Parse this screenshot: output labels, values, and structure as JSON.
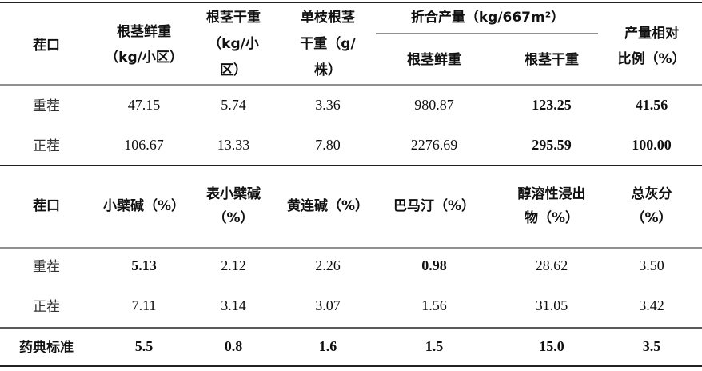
{
  "table1": {
    "header": {
      "row_label": [
        "茬口"
      ],
      "fresh_weight": [
        "根茎鲜重",
        "（kg/小区）"
      ],
      "dry_weight": [
        "根茎干重",
        "（kg/小",
        "区）"
      ],
      "single_dry": [
        "单枝根茎",
        "干重（g/",
        "株）"
      ],
      "group": "折合产量（kg/667m²）",
      "group_fresh": "根茎鲜重",
      "group_dry": "根茎干重",
      "ratio": [
        "产量相对",
        "比例（%）"
      ]
    },
    "rows": [
      [
        "重茬",
        "47.15",
        "5.74",
        "3.36",
        "980.87",
        "123.25",
        "41.56"
      ],
      [
        "正茬",
        "106.67",
        "13.33",
        "7.80",
        "2276.69",
        "295.59",
        "100.00"
      ]
    ]
  },
  "table2": {
    "header": [
      [
        "茬口"
      ],
      [
        "小檗碱（%）"
      ],
      [
        "表小檗碱",
        "（%）"
      ],
      [
        "黄连碱（%）"
      ],
      [
        "巴马汀（%）"
      ],
      [
        "醇溶性浸出",
        "物（%）"
      ],
      [
        "总灰分",
        "（%）"
      ]
    ],
    "rows": [
      [
        "重茬",
        "5.13",
        "2.12",
        "2.26",
        "0.98",
        "28.62",
        "3.50"
      ],
      [
        "正茬",
        "7.11",
        "3.14",
        "3.07",
        "1.56",
        "31.05",
        "3.42"
      ]
    ],
    "standard": [
      "药典标准",
      "5.5",
      "0.8",
      "1.6",
      "1.5",
      "15.0",
      "3.5"
    ]
  }
}
